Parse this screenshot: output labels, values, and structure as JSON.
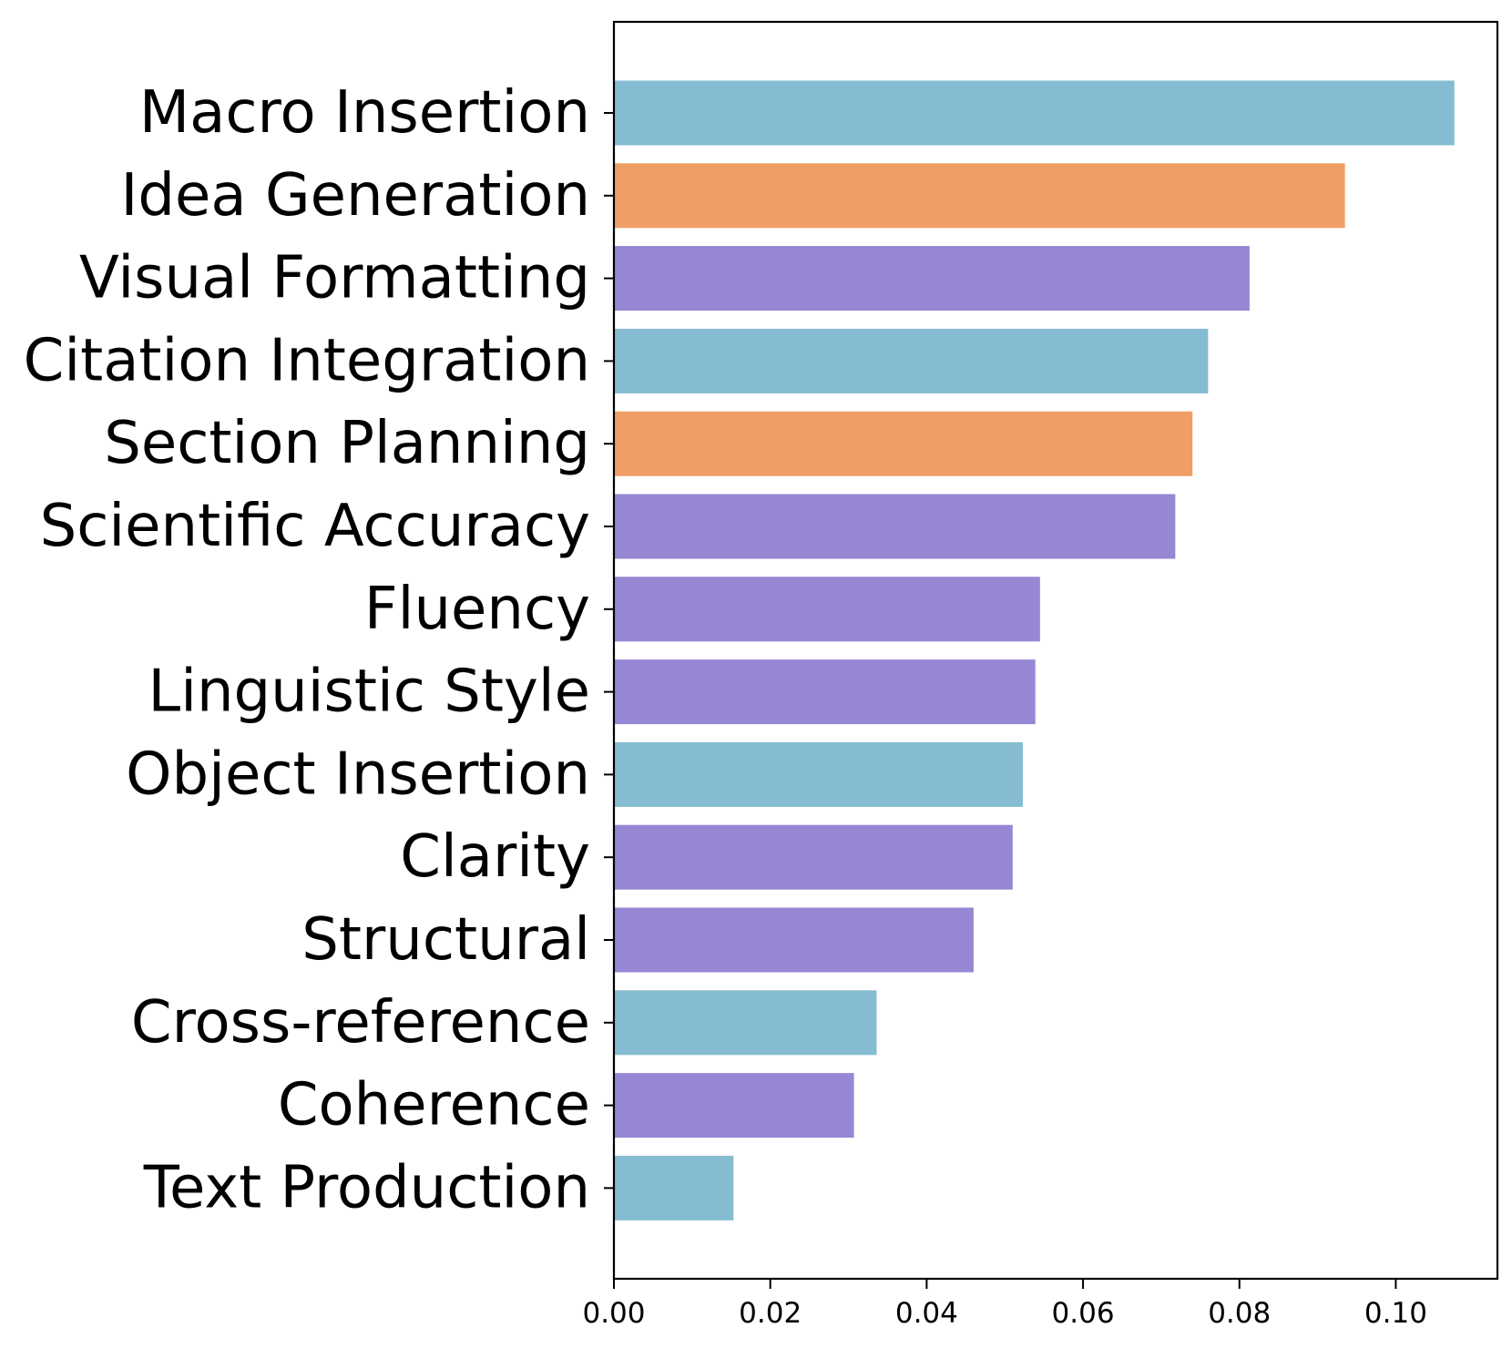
{
  "chart_data": {
    "type": "bar",
    "orientation": "horizontal",
    "categories": [
      "Macro Insertion",
      "Idea Generation",
      "Visual Formatting",
      "Citation Integration",
      "Section Planning",
      "Scientific Accuracy",
      "Fluency",
      "Linguistic Style",
      "Object Insertion",
      "Clarity",
      "Structural",
      "Cross-reference",
      "Coherence",
      "Text Production"
    ],
    "values": [
      0.1075,
      0.0935,
      0.0813,
      0.076,
      0.074,
      0.0718,
      0.0545,
      0.0539,
      0.0523,
      0.051,
      0.046,
      0.0336,
      0.0307,
      0.0153
    ],
    "bar_colors": [
      "#86bcd1",
      "#ef9e66",
      "#9686d3",
      "#86bcd1",
      "#ef9e66",
      "#9686d3",
      "#9686d3",
      "#9686d3",
      "#86bcd1",
      "#9686d3",
      "#9686d3",
      "#86bcd1",
      "#9686d3",
      "#86bcd1"
    ],
    "title": "",
    "xlabel": "",
    "ylabel": "",
    "xlim": [
      0,
      0.113
    ],
    "x_ticks": [
      0.0,
      0.02,
      0.04,
      0.06,
      0.08,
      0.1
    ],
    "x_tick_labels": [
      "0.00",
      "0.02",
      "0.04",
      "0.06",
      "0.08",
      "0.10"
    ],
    "grid": false,
    "legend": "none"
  }
}
